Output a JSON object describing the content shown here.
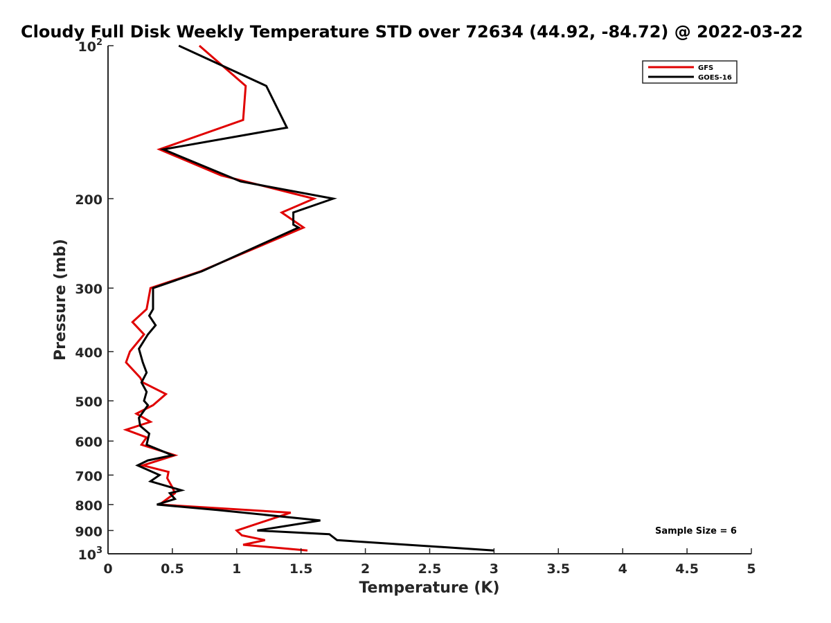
{
  "chart_data": {
    "type": "line",
    "title": "Cloudy Full Disk Weekly Temperature STD over 72634 (44.92, -84.72) @ 2022-03-22",
    "xlabel": "Temperature (K)",
    "ylabel": "Pressure (mb)",
    "xlim": [
      0,
      5
    ],
    "ylim": [
      100,
      1000
    ],
    "yscale": "log",
    "y_reversed": true,
    "x_ticks": [
      "0",
      "0.5",
      "1",
      "1.5",
      "2",
      "2.5",
      "3",
      "3.5",
      "4",
      "4.5",
      "5"
    ],
    "y_ticks": [
      {
        "value": 100,
        "base": "10",
        "exp": "2"
      },
      {
        "value": 200,
        "label": "200"
      },
      {
        "value": 300,
        "label": "300"
      },
      {
        "value": 400,
        "label": "400"
      },
      {
        "value": 500,
        "label": "500"
      },
      {
        "value": 600,
        "label": "600"
      },
      {
        "value": 700,
        "label": "700"
      },
      {
        "value": 800,
        "label": "800"
      },
      {
        "value": 900,
        "label": "900"
      },
      {
        "value": 1000,
        "base": "10",
        "exp": "3"
      }
    ],
    "grid": false,
    "legend_position": "top-right",
    "annotation": "Sample Size = 6",
    "series": [
      {
        "name": "GFS",
        "color": "#e00000",
        "points": [
          [
            0.71,
            100
          ],
          [
            1.07,
            120
          ],
          [
            1.05,
            140
          ],
          [
            0.4,
            160
          ],
          [
            0.88,
            180
          ],
          [
            1.6,
            200
          ],
          [
            1.35,
            213
          ],
          [
            1.52,
            228
          ],
          [
            0.72,
            278
          ],
          [
            0.33,
            300
          ],
          [
            0.3,
            330
          ],
          [
            0.19,
            350
          ],
          [
            0.28,
            370
          ],
          [
            0.17,
            400
          ],
          [
            0.14,
            420
          ],
          [
            0.25,
            450
          ],
          [
            0.27,
            460
          ],
          [
            0.45,
            485
          ],
          [
            0.35,
            510
          ],
          [
            0.22,
            530
          ],
          [
            0.33,
            550
          ],
          [
            0.14,
            570
          ],
          [
            0.3,
            590
          ],
          [
            0.26,
            610
          ],
          [
            0.52,
            640
          ],
          [
            0.27,
            670
          ],
          [
            0.47,
            690
          ],
          [
            0.46,
            710
          ],
          [
            0.5,
            740
          ],
          [
            0.52,
            760
          ],
          [
            0.4,
            800
          ],
          [
            1.42,
            830
          ],
          [
            1.0,
            900
          ],
          [
            1.04,
            920
          ],
          [
            1.22,
            940
          ],
          [
            1.05,
            960
          ],
          [
            1.55,
            985
          ]
        ]
      },
      {
        "name": "GOES-16",
        "color": "#000000",
        "points": [
          [
            0.55,
            100
          ],
          [
            1.23,
            120
          ],
          [
            1.39,
            145
          ],
          [
            0.43,
            160
          ],
          [
            1.03,
            185
          ],
          [
            1.75,
            200
          ],
          [
            1.44,
            213
          ],
          [
            1.44,
            225
          ],
          [
            1.48,
            228
          ],
          [
            0.73,
            278
          ],
          [
            0.35,
            300
          ],
          [
            0.35,
            330
          ],
          [
            0.32,
            340
          ],
          [
            0.37,
            355
          ],
          [
            0.31,
            370
          ],
          [
            0.24,
            395
          ],
          [
            0.27,
            420
          ],
          [
            0.3,
            440
          ],
          [
            0.26,
            460
          ],
          [
            0.3,
            480
          ],
          [
            0.28,
            500
          ],
          [
            0.31,
            510
          ],
          [
            0.24,
            540
          ],
          [
            0.25,
            560
          ],
          [
            0.32,
            580
          ],
          [
            0.3,
            610
          ],
          [
            0.5,
            640
          ],
          [
            0.31,
            655
          ],
          [
            0.23,
            670
          ],
          [
            0.4,
            700
          ],
          [
            0.33,
            720
          ],
          [
            0.57,
            750
          ],
          [
            0.48,
            760
          ],
          [
            0.52,
            780
          ],
          [
            0.38,
            800
          ],
          [
            0.85,
            820
          ],
          [
            1.65,
            860
          ],
          [
            1.16,
            900
          ],
          [
            1.72,
            915
          ],
          [
            1.78,
            940
          ],
          [
            3.0,
            985
          ]
        ]
      }
    ]
  }
}
